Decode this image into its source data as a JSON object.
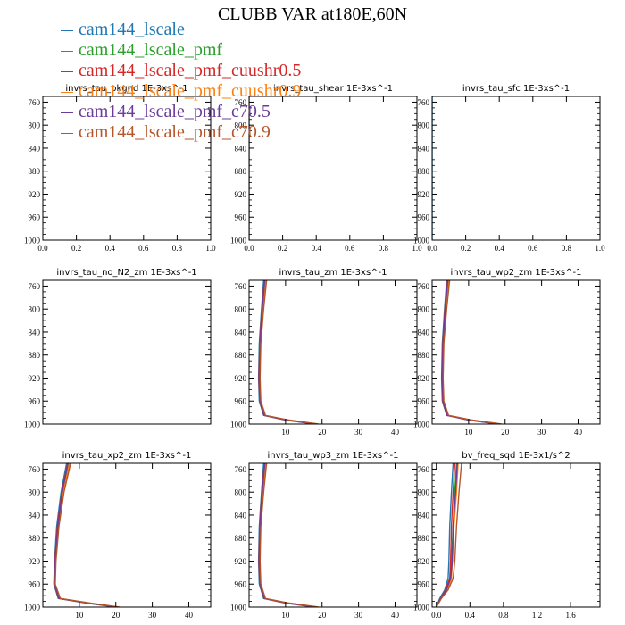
{
  "title": "CLUBB VAR at180E,60N",
  "legend": [
    {
      "label": "cam144_lscale",
      "color": "#1f77b4"
    },
    {
      "label": "cam144_lscale_pmf",
      "color": "#2ca02c"
    },
    {
      "label": "cam144_lscale_pmf_cuushr0.5",
      "color": "#d62728"
    },
    {
      "label": "cam144_lscale_pmf_cuushr0.9",
      "color": "#ff7f0e"
    },
    {
      "label": "cam144_lscale_pmf_c70.5",
      "color": "#6a3d9a"
    },
    {
      "label": "cam144_lscale_pmf_c70.9",
      "color": "#b5562a"
    }
  ],
  "chart_data": [
    {
      "type": "line",
      "title": "invrs_tau_bkgnd   1E-3xs^-1",
      "xlim": [
        0,
        1
      ],
      "ylim": [
        1000,
        750
      ],
      "xticks": [
        0.0,
        0.2,
        0.4,
        0.6,
        0.8,
        1.0
      ],
      "xtick_labels": [
        "0.0",
        "0.2",
        "0.4",
        "0.6",
        "0.8",
        "1.0"
      ],
      "yticks": [
        760,
        800,
        840,
        880,
        920,
        960,
        1000
      ],
      "series": []
    },
    {
      "type": "line",
      "title": "invrs_tau_shear   1E-3xs^-1",
      "xlim": [
        0,
        1
      ],
      "ylim": [
        1000,
        750
      ],
      "xticks": [
        0.0,
        0.2,
        0.4,
        0.6,
        0.8,
        1.0
      ],
      "xtick_labels": [
        "0.0",
        "0.2",
        "0.4",
        "0.6",
        "0.8",
        "1.0"
      ],
      "yticks": [
        760,
        800,
        840,
        880,
        920,
        960,
        1000
      ],
      "series": [
        {
          "y": [
            750,
            800,
            850,
            900,
            950,
            1000
          ],
          "x": [
            0.0,
            0.0,
            0.0,
            0.0,
            0.0,
            0.0
          ]
        }
      ]
    },
    {
      "type": "line",
      "title": "invrs_tau_sfc   1E-3xs^-1",
      "xlim": [
        0,
        1
      ],
      "ylim": [
        1000,
        750
      ],
      "xticks": [
        0.0,
        0.2,
        0.4,
        0.6,
        0.8,
        1.0
      ],
      "xtick_labels": [
        "0.0",
        "0.2",
        "0.4",
        "0.6",
        "0.8",
        "1.0"
      ],
      "yticks": [
        760,
        800,
        840,
        880,
        920,
        960,
        1000
      ],
      "series": [
        {
          "y": [
            750,
            800,
            850,
            900,
            950,
            1000
          ],
          "x": [
            0.0,
            0.0,
            0.0,
            0.0,
            0.0,
            0.0
          ]
        }
      ]
    },
    {
      "type": "line",
      "title": "invrs_tau_no_N2_zm   1E-3xs^-1",
      "xlim": [
        0,
        1
      ],
      "ylim": [
        1000,
        750
      ],
      "xticks": [],
      "xtick_labels": [],
      "yticks": [
        760,
        800,
        840,
        880,
        920,
        960,
        1000
      ],
      "series": []
    },
    {
      "type": "line",
      "title": "invrs_tau_zm   1E-3xs^-1",
      "xlim": [
        0,
        46
      ],
      "ylim": [
        1000,
        750
      ],
      "xticks": [
        10,
        20,
        30,
        40
      ],
      "xtick_labels": [
        "10",
        "20",
        "30",
        "40"
      ],
      "yticks": [
        760,
        800,
        840,
        880,
        920,
        960,
        1000
      ],
      "series": [
        {
          "y": [
            750,
            800,
            860,
            920,
            960,
            985,
            993,
            1000
          ],
          "x": [
            4.0,
            3.4,
            2.8,
            2.6,
            2.8,
            4.0,
            10.0,
            18.0
          ]
        },
        {
          "y": [
            750,
            800,
            860,
            920,
            960,
            985,
            993,
            1000
          ],
          "x": [
            4.4,
            3.7,
            3.0,
            2.8,
            3.0,
            4.2,
            10.5,
            18.5
          ]
        },
        {
          "y": [
            750,
            800,
            860,
            920,
            960,
            985,
            993,
            1000
          ],
          "x": [
            4.2,
            3.5,
            2.9,
            2.7,
            2.9,
            4.1,
            10.2,
            18.2
          ]
        },
        {
          "y": [
            750,
            800,
            860,
            920,
            960,
            985,
            993,
            1000
          ],
          "x": [
            4.6,
            3.9,
            3.1,
            2.9,
            3.1,
            4.3,
            10.8,
            18.8
          ]
        },
        {
          "y": [
            750,
            800,
            860,
            920,
            960,
            985,
            993,
            1000
          ],
          "x": [
            4.3,
            3.6,
            3.0,
            2.8,
            3.0,
            4.2,
            10.3,
            18.3
          ]
        },
        {
          "y": [
            750,
            800,
            860,
            920,
            960,
            985,
            993,
            1000
          ],
          "x": [
            4.8,
            4.0,
            3.2,
            3.0,
            3.2,
            4.5,
            11.0,
            19.0
          ]
        }
      ]
    },
    {
      "type": "line",
      "title": "invrs_tau_wp2_zm   1E-3xs^-1",
      "xlim": [
        0,
        46
      ],
      "ylim": [
        1000,
        750
      ],
      "xticks": [
        10,
        20,
        30,
        40
      ],
      "xtick_labels": [
        "10",
        "20",
        "30",
        "40"
      ],
      "yticks": [
        760,
        800,
        840,
        880,
        920,
        960,
        1000
      ],
      "series": [
        {
          "y": [
            750,
            800,
            860,
            920,
            960,
            985,
            993,
            1000
          ],
          "x": [
            4.0,
            3.4,
            2.8,
            2.6,
            2.8,
            4.0,
            10.0,
            18.0
          ]
        },
        {
          "y": [
            750,
            800,
            860,
            920,
            960,
            985,
            993,
            1000
          ],
          "x": [
            4.4,
            3.7,
            3.0,
            2.8,
            3.0,
            4.2,
            10.5,
            18.5
          ]
        },
        {
          "y": [
            750,
            800,
            860,
            920,
            960,
            985,
            993,
            1000
          ],
          "x": [
            4.2,
            3.5,
            2.9,
            2.7,
            2.9,
            4.1,
            10.2,
            18.2
          ]
        },
        {
          "y": [
            750,
            800,
            860,
            920,
            960,
            985,
            993,
            1000
          ],
          "x": [
            4.6,
            3.9,
            3.1,
            2.9,
            3.1,
            4.3,
            10.8,
            18.8
          ]
        },
        {
          "y": [
            750,
            800,
            860,
            920,
            960,
            985,
            993,
            1000
          ],
          "x": [
            4.3,
            3.6,
            3.0,
            2.8,
            3.0,
            4.2,
            10.3,
            18.3
          ]
        },
        {
          "y": [
            750,
            800,
            860,
            920,
            960,
            985,
            993,
            1000
          ],
          "x": [
            4.8,
            4.0,
            3.2,
            3.0,
            3.2,
            4.5,
            11.0,
            19.0
          ]
        }
      ]
    },
    {
      "type": "line",
      "title": "invrs_tau_xp2_zm   1E-3xs^-1",
      "xlim": [
        0,
        46
      ],
      "ylim": [
        1000,
        750
      ],
      "xticks": [
        10,
        20,
        30,
        40
      ],
      "xtick_labels": [
        "10",
        "20",
        "30",
        "40"
      ],
      "yticks": [
        760,
        800,
        840,
        880,
        920,
        960,
        1000
      ],
      "series": [
        {
          "y": [
            750,
            800,
            860,
            920,
            960,
            985,
            993,
            1000
          ],
          "x": [
            6.5,
            5.0,
            3.8,
            3.2,
            3.0,
            4.2,
            12.0,
            20.0
          ]
        },
        {
          "y": [
            750,
            800,
            860,
            920,
            960,
            985,
            993,
            1000
          ],
          "x": [
            7.0,
            5.4,
            4.1,
            3.4,
            3.2,
            4.5,
            12.5,
            20.5
          ]
        },
        {
          "y": [
            750,
            800,
            860,
            920,
            960,
            985,
            993,
            1000
          ],
          "x": [
            6.8,
            5.2,
            4.0,
            3.3,
            3.1,
            4.4,
            12.2,
            20.2
          ]
        },
        {
          "y": [
            750,
            800,
            860,
            920,
            960,
            985,
            993,
            1000
          ],
          "x": [
            7.3,
            5.6,
            4.3,
            3.5,
            3.3,
            4.7,
            12.8,
            20.8
          ]
        },
        {
          "y": [
            750,
            800,
            860,
            920,
            960,
            985,
            993,
            1000
          ],
          "x": [
            6.9,
            5.3,
            4.1,
            3.4,
            3.2,
            4.5,
            12.4,
            20.4
          ]
        },
        {
          "y": [
            750,
            800,
            860,
            920,
            960,
            985,
            993,
            1000
          ],
          "x": [
            7.6,
            5.8,
            4.4,
            3.6,
            3.4,
            4.8,
            13.0,
            21.0
          ]
        }
      ]
    },
    {
      "type": "line",
      "title": "invrs_tau_wp3_zm   1E-3xs^-1",
      "xlim": [
        0,
        46
      ],
      "ylim": [
        1000,
        750
      ],
      "xticks": [
        10,
        20,
        30,
        40
      ],
      "xtick_labels": [
        "10",
        "20",
        "30",
        "40"
      ],
      "yticks": [
        760,
        800,
        840,
        880,
        920,
        960,
        1000
      ],
      "series": [
        {
          "y": [
            750,
            800,
            860,
            920,
            960,
            985,
            993,
            1000
          ],
          "x": [
            4.0,
            3.4,
            2.8,
            2.6,
            2.8,
            4.0,
            10.0,
            18.0
          ]
        },
        {
          "y": [
            750,
            800,
            860,
            920,
            960,
            985,
            993,
            1000
          ],
          "x": [
            4.4,
            3.7,
            3.0,
            2.8,
            3.0,
            4.2,
            10.5,
            18.5
          ]
        },
        {
          "y": [
            750,
            800,
            860,
            920,
            960,
            985,
            993,
            1000
          ],
          "x": [
            4.2,
            3.5,
            2.9,
            2.7,
            2.9,
            4.1,
            10.2,
            18.2
          ]
        },
        {
          "y": [
            750,
            800,
            860,
            920,
            960,
            985,
            993,
            1000
          ],
          "x": [
            4.6,
            3.9,
            3.1,
            2.9,
            3.1,
            4.3,
            10.8,
            18.8
          ]
        },
        {
          "y": [
            750,
            800,
            860,
            920,
            960,
            985,
            993,
            1000
          ],
          "x": [
            4.3,
            3.6,
            3.0,
            2.8,
            3.0,
            4.2,
            10.3,
            18.3
          ]
        },
        {
          "y": [
            750,
            800,
            860,
            920,
            960,
            985,
            993,
            1000
          ],
          "x": [
            4.8,
            4.0,
            3.2,
            3.0,
            3.2,
            4.5,
            11.0,
            19.0
          ]
        }
      ]
    },
    {
      "type": "line",
      "title": "bv_freq_sqd   1E-3x1/s^2",
      "xlim": [
        -0.05,
        1.95
      ],
      "ylim": [
        1000,
        750
      ],
      "xticks": [
        0.0,
        0.4,
        0.8,
        1.2,
        1.6
      ],
      "xtick_labels": [
        "0.0",
        "0.4",
        "0.8",
        "1.2",
        "1.6"
      ],
      "yticks": [
        760,
        800,
        840,
        880,
        920,
        960,
        1000
      ],
      "series": [
        {
          "y": [
            750,
            800,
            860,
            920,
            950,
            970,
            985,
            1000
          ],
          "x": [
            0.2,
            0.18,
            0.16,
            0.15,
            0.14,
            0.1,
            0.04,
            0.0
          ]
        },
        {
          "y": [
            750,
            800,
            860,
            920,
            950,
            970,
            985,
            1000
          ],
          "x": [
            0.24,
            0.22,
            0.2,
            0.18,
            0.17,
            0.12,
            0.05,
            0.0
          ]
        },
        {
          "y": [
            750,
            800,
            860,
            920,
            950,
            970,
            985,
            1000
          ],
          "x": [
            0.22,
            0.2,
            0.18,
            0.17,
            0.16,
            0.11,
            0.05,
            0.0
          ]
        },
        {
          "y": [
            750,
            800,
            860,
            920,
            950,
            970,
            985,
            1000
          ],
          "x": [
            0.26,
            0.24,
            0.21,
            0.19,
            0.18,
            0.13,
            0.06,
            0.0
          ]
        },
        {
          "y": [
            750,
            800,
            860,
            920,
            950,
            970,
            985,
            1000
          ],
          "x": [
            0.25,
            0.23,
            0.2,
            0.19,
            0.17,
            0.12,
            0.05,
            0.0
          ]
        },
        {
          "y": [
            750,
            800,
            860,
            920,
            950,
            970,
            985,
            1000
          ],
          "x": [
            0.3,
            0.27,
            0.24,
            0.22,
            0.2,
            0.14,
            0.06,
            0.0
          ]
        }
      ]
    }
  ]
}
